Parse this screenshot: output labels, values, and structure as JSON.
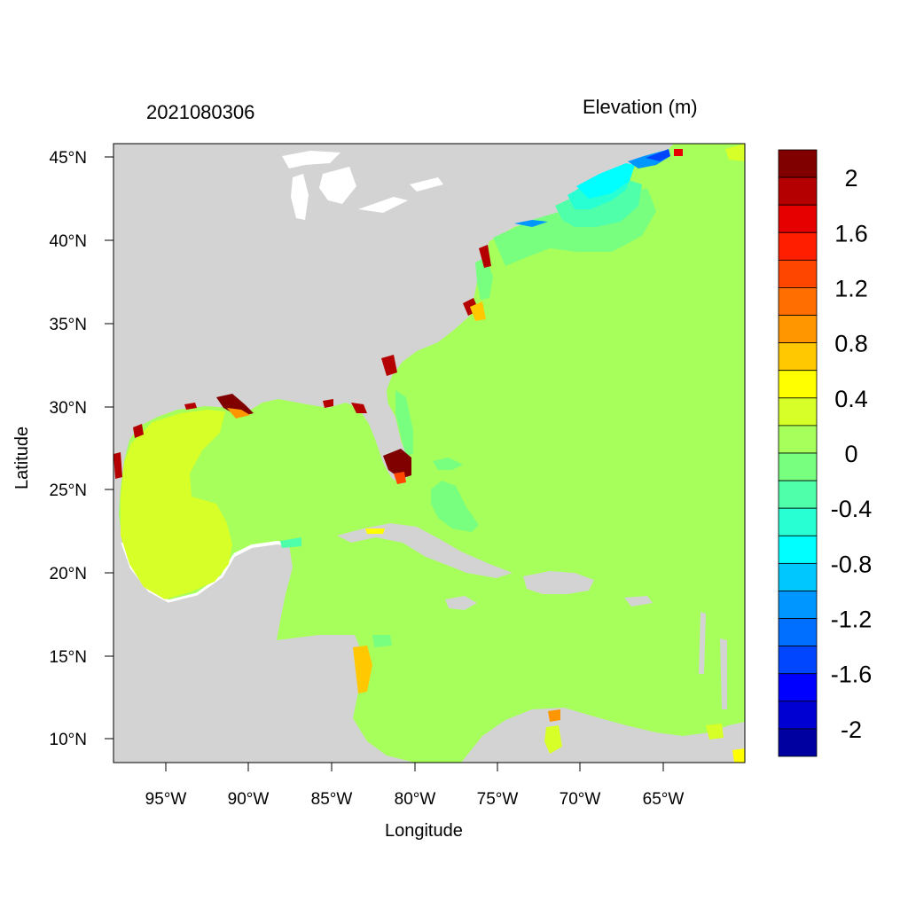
{
  "header": {
    "timestamp": "2021080306",
    "variable": "Elevation (m)"
  },
  "axes": {
    "xlabel": "Longitude",
    "ylabel": "Latitude",
    "x_ticks": [
      "95°W",
      "90°W",
      "85°W",
      "80°W",
      "75°W",
      "70°W",
      "65°W"
    ],
    "y_ticks": [
      "45°N",
      "40°N",
      "35°N",
      "30°N",
      "25°N",
      "20°N",
      "15°N",
      "10°N"
    ]
  },
  "map": {
    "lon_range": [
      -98,
      -60
    ],
    "lat_range": [
      8.5,
      46
    ],
    "land_color": "#d3d3d3",
    "background_value_color": "#a6ff5a"
  },
  "colorbar": {
    "labels": [
      "2",
      "1.6",
      "1.2",
      "0.8",
      "0.4",
      "0",
      "-0.4",
      "-0.8",
      "-1.2",
      "-1.6",
      "-2"
    ],
    "colors": [
      "#800000",
      "#b40000",
      "#e60000",
      "#ff1e00",
      "#ff4600",
      "#ff6e00",
      "#ff9600",
      "#ffc800",
      "#ffff00",
      "#d7ff28",
      "#a6ff5a",
      "#78ff80",
      "#50ffaa",
      "#28ffd2",
      "#00ffff",
      "#00c8ff",
      "#0096ff",
      "#006eff",
      "#0046ff",
      "#0000ff",
      "#0000d2",
      "#0000a0"
    ]
  }
}
